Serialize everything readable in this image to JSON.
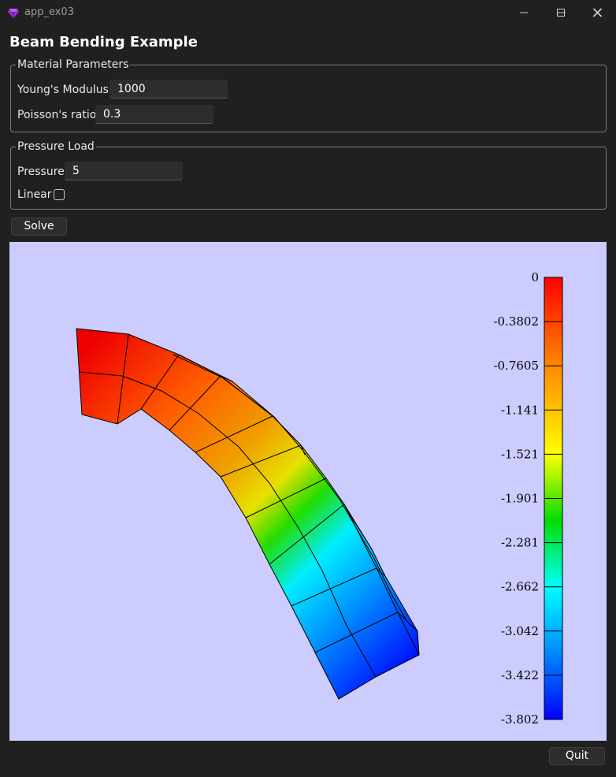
{
  "window": {
    "title": "app_ex03"
  },
  "heading": "Beam Bending Example",
  "material": {
    "legend": "Material Parameters",
    "youngs_label": "Young's Modulus",
    "youngs_value": "1000",
    "poisson_label": "Poisson's ratio",
    "poisson_value": "0.3"
  },
  "pressure_load": {
    "legend": "Pressure Load",
    "pressure_label": "Pressure",
    "pressure_value": "5",
    "linear_label": "Linear",
    "linear_checked": false
  },
  "buttons": {
    "solve": "Solve",
    "quit": "Quit"
  },
  "icons": {
    "app": "app-gem-icon",
    "minimize": "minimize-icon",
    "maximize": "maximize-icon",
    "close": "close-icon"
  },
  "colors": {
    "viewport_background": "#ccccff",
    "window_background": "#202020"
  },
  "colorbar": {
    "ticks": [
      "0",
      "-0.3802",
      "-0.7605",
      "-1.141",
      "-1.521",
      "-1.901",
      "-2.281",
      "-2.662",
      "-3.042",
      "-3.422",
      "-3.802"
    ],
    "gradient": [
      "#ff0000",
      "#ff8800",
      "#ffff00",
      "#00dd00",
      "#00ffff",
      "#0088ff",
      "#0000ff"
    ]
  }
}
